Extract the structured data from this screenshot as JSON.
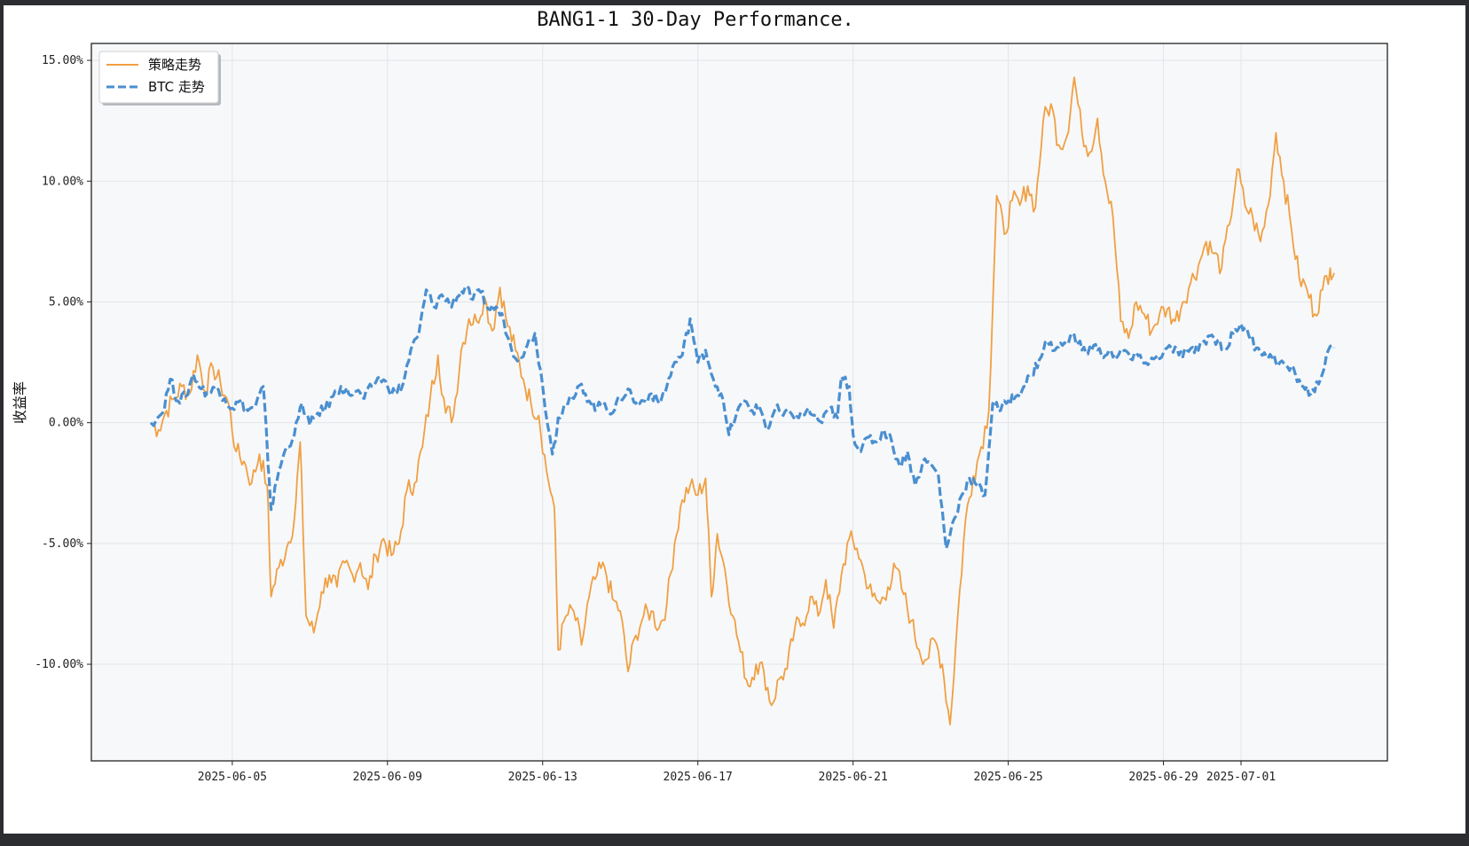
{
  "chart_data": {
    "type": "line",
    "title": "BANG1-1 30-Day Performance.",
    "xlabel": "",
    "ylabel": "收益率",
    "x_range": [
      "2025-06-03",
      "2025-07-03"
    ],
    "ylim": [
      -14,
      15.7
    ],
    "y_ticks": [
      15,
      10,
      5,
      0,
      -5,
      -10
    ],
    "y_tick_labels": [
      "15.00%",
      "10.00%",
      "5.00%",
      "0.00%",
      "-5.00%",
      "-10.00%"
    ],
    "x_ticks": [
      "2025-06-05",
      "2025-06-09",
      "2025-06-13",
      "2025-06-17",
      "2025-06-21",
      "2025-06-25",
      "2025-06-29",
      "2025-07-01"
    ],
    "x_tick_positions": [
      2.1,
      6.1,
      10.1,
      14.1,
      18.1,
      22.1,
      26.1,
      28.1
    ],
    "grid": true,
    "legend_position": "top-left",
    "series": [
      {
        "name": "策略走势",
        "color": "#f0a042",
        "style": "solid",
        "points": [
          [
            0.0,
            0.0
          ],
          [
            0.2,
            -0.3
          ],
          [
            0.4,
            0.5
          ],
          [
            0.6,
            1.0
          ],
          [
            0.8,
            1.5
          ],
          [
            1.0,
            1.2
          ],
          [
            1.2,
            2.8
          ],
          [
            1.4,
            1.3
          ],
          [
            1.6,
            2.3
          ],
          [
            1.8,
            1.6
          ],
          [
            2.0,
            0.8
          ],
          [
            2.2,
            -1.2
          ],
          [
            2.4,
            -1.6
          ],
          [
            2.6,
            -2.5
          ],
          [
            2.8,
            -1.3
          ],
          [
            3.0,
            -2.6
          ],
          [
            3.1,
            -7.2
          ],
          [
            3.3,
            -6.0
          ],
          [
            3.5,
            -5.2
          ],
          [
            3.7,
            -4.0
          ],
          [
            3.85,
            -0.8
          ],
          [
            4.0,
            -8.0
          ],
          [
            4.2,
            -8.7
          ],
          [
            4.4,
            -7.0
          ],
          [
            4.6,
            -6.3
          ],
          [
            4.8,
            -6.8
          ],
          [
            5.0,
            -5.8
          ],
          [
            5.2,
            -6.3
          ],
          [
            5.4,
            -5.8
          ],
          [
            5.6,
            -6.9
          ],
          [
            5.8,
            -5.5
          ],
          [
            6.0,
            -4.8
          ],
          [
            6.2,
            -5.5
          ],
          [
            6.4,
            -5.0
          ],
          [
            6.6,
            -2.8
          ],
          [
            6.8,
            -2.5
          ],
          [
            7.0,
            -1.0
          ],
          [
            7.2,
            1.0
          ],
          [
            7.4,
            2.8
          ],
          [
            7.6,
            0.4
          ],
          [
            7.8,
            0.3
          ],
          [
            8.0,
            3.0
          ],
          [
            8.2,
            4.3
          ],
          [
            8.4,
            4.2
          ],
          [
            8.6,
            5.2
          ],
          [
            8.8,
            3.8
          ],
          [
            9.0,
            5.6
          ],
          [
            9.2,
            4.0
          ],
          [
            9.4,
            3.0
          ],
          [
            9.6,
            1.8
          ],
          [
            9.8,
            0.8
          ],
          [
            10.0,
            0.3
          ],
          [
            10.2,
            -2.0
          ],
          [
            10.4,
            -3.5
          ],
          [
            10.5,
            -9.4
          ],
          [
            10.7,
            -8.0
          ],
          [
            10.9,
            -7.8
          ],
          [
            11.1,
            -9.2
          ],
          [
            11.3,
            -7.2
          ],
          [
            11.5,
            -6.3
          ],
          [
            11.7,
            -6.0
          ],
          [
            11.9,
            -7.3
          ],
          [
            12.1,
            -7.8
          ],
          [
            12.3,
            -10.3
          ],
          [
            12.5,
            -8.8
          ],
          [
            12.7,
            -8.0
          ],
          [
            12.9,
            -7.8
          ],
          [
            13.1,
            -8.5
          ],
          [
            13.3,
            -7.5
          ],
          [
            13.5,
            -5.0
          ],
          [
            13.7,
            -3.2
          ],
          [
            13.9,
            -2.6
          ],
          [
            14.1,
            -3.0
          ],
          [
            14.3,
            -2.3
          ],
          [
            14.45,
            -7.2
          ],
          [
            14.6,
            -4.6
          ],
          [
            14.8,
            -6.1
          ],
          [
            15.0,
            -8.0
          ],
          [
            15.2,
            -9.5
          ],
          [
            15.4,
            -10.9
          ],
          [
            15.6,
            -10.0
          ],
          [
            15.8,
            -10.3
          ],
          [
            16.0,
            -11.7
          ],
          [
            16.2,
            -10.6
          ],
          [
            16.4,
            -10.2
          ],
          [
            16.6,
            -8.5
          ],
          [
            16.8,
            -8.3
          ],
          [
            17.0,
            -7.2
          ],
          [
            17.2,
            -8.0
          ],
          [
            17.4,
            -6.5
          ],
          [
            17.6,
            -8.5
          ],
          [
            17.8,
            -6.3
          ],
          [
            18.0,
            -4.8
          ],
          [
            18.2,
            -5.2
          ],
          [
            18.4,
            -6.3
          ],
          [
            18.6,
            -7.2
          ],
          [
            18.8,
            -7.5
          ],
          [
            19.0,
            -6.8
          ],
          [
            19.2,
            -6.0
          ],
          [
            19.4,
            -7.1
          ],
          [
            19.6,
            -8.2
          ],
          [
            19.8,
            -9.4
          ],
          [
            20.0,
            -9.8
          ],
          [
            20.2,
            -9.0
          ],
          [
            20.4,
            -10.0
          ],
          [
            20.6,
            -12.5
          ],
          [
            20.8,
            -8.0
          ],
          [
            21.0,
            -4.0
          ],
          [
            21.2,
            -2.2
          ],
          [
            21.4,
            -1.0
          ],
          [
            21.6,
            0.5
          ],
          [
            21.8,
            9.4
          ],
          [
            22.0,
            7.8
          ],
          [
            22.2,
            9.2
          ],
          [
            22.4,
            9.0
          ],
          [
            22.6,
            9.8
          ],
          [
            22.8,
            8.9
          ],
          [
            23.0,
            12.5
          ],
          [
            23.2,
            13.2
          ],
          [
            23.4,
            11.5
          ],
          [
            23.6,
            11.8
          ],
          [
            23.8,
            14.3
          ],
          [
            24.0,
            12.0
          ],
          [
            24.2,
            11.2
          ],
          [
            24.4,
            12.6
          ],
          [
            24.6,
            10.0
          ],
          [
            24.8,
            8.5
          ],
          [
            25.0,
            4.2
          ],
          [
            25.2,
            3.5
          ],
          [
            25.4,
            5.0
          ],
          [
            25.6,
            4.5
          ],
          [
            25.8,
            3.8
          ],
          [
            26.0,
            4.5
          ],
          [
            26.2,
            4.7
          ],
          [
            26.4,
            4.2
          ],
          [
            26.6,
            5.0
          ],
          [
            26.8,
            5.8
          ],
          [
            27.0,
            6.5
          ],
          [
            27.2,
            7.5
          ],
          [
            27.4,
            7.0
          ],
          [
            27.6,
            6.4
          ],
          [
            27.8,
            8.2
          ],
          [
            28.0,
            10.5
          ],
          [
            28.2,
            9.0
          ],
          [
            28.4,
            8.5
          ],
          [
            28.6,
            7.5
          ],
          [
            28.8,
            9.0
          ],
          [
            29.0,
            12.0
          ],
          [
            29.2,
            10.0
          ],
          [
            29.4,
            8.0
          ],
          [
            29.6,
            6.0
          ],
          [
            29.8,
            5.5
          ],
          [
            30.0,
            4.5
          ],
          [
            30.2,
            5.5
          ],
          [
            30.4,
            6.4
          ],
          [
            30.5,
            6.2
          ]
        ]
      },
      {
        "name": "BTC 走势",
        "color": "#4a8fd0",
        "style": "dashed",
        "points": [
          [
            0.0,
            0.0
          ],
          [
            0.3,
            0.4
          ],
          [
            0.5,
            1.8
          ],
          [
            0.7,
            0.9
          ],
          [
            0.9,
            1.1
          ],
          [
            1.1,
            2.0
          ],
          [
            1.3,
            1.4
          ],
          [
            1.5,
            1.2
          ],
          [
            1.7,
            1.5
          ],
          [
            1.9,
            1.0
          ],
          [
            2.1,
            0.6
          ],
          [
            2.3,
            0.9
          ],
          [
            2.5,
            0.5
          ],
          [
            2.7,
            0.7
          ],
          [
            2.9,
            1.5
          ],
          [
            3.0,
            -1.0
          ],
          [
            3.1,
            -3.6
          ],
          [
            3.3,
            -2.0
          ],
          [
            3.5,
            -1.0
          ],
          [
            3.7,
            -0.5
          ],
          [
            3.9,
            0.8
          ],
          [
            4.1,
            -0.1
          ],
          [
            4.3,
            0.4
          ],
          [
            4.5,
            0.6
          ],
          [
            4.7,
            1.1
          ],
          [
            4.9,
            1.5
          ],
          [
            5.1,
            1.2
          ],
          [
            5.3,
            1.3
          ],
          [
            5.5,
            1.0
          ],
          [
            5.7,
            1.5
          ],
          [
            5.9,
            1.9
          ],
          [
            6.1,
            1.5
          ],
          [
            6.3,
            1.2
          ],
          [
            6.5,
            1.6
          ],
          [
            6.7,
            3.0
          ],
          [
            6.9,
            3.6
          ],
          [
            7.1,
            5.5
          ],
          [
            7.3,
            4.8
          ],
          [
            7.5,
            5.3
          ],
          [
            7.7,
            4.9
          ],
          [
            7.9,
            5.2
          ],
          [
            8.1,
            5.6
          ],
          [
            8.3,
            5.1
          ],
          [
            8.5,
            5.4
          ],
          [
            8.7,
            4.7
          ],
          [
            8.9,
            4.8
          ],
          [
            9.1,
            4.2
          ],
          [
            9.3,
            3.0
          ],
          [
            9.5,
            2.7
          ],
          [
            9.7,
            3.2
          ],
          [
            9.9,
            3.7
          ],
          [
            10.1,
            1.5
          ],
          [
            10.35,
            -1.3
          ],
          [
            10.5,
            0.2
          ],
          [
            10.7,
            0.8
          ],
          [
            10.9,
            1.0
          ],
          [
            11.1,
            1.6
          ],
          [
            11.3,
            0.9
          ],
          [
            11.5,
            0.6
          ],
          [
            11.7,
            0.8
          ],
          [
            11.9,
            0.4
          ],
          [
            12.1,
            1.0
          ],
          [
            12.3,
            1.4
          ],
          [
            12.5,
            0.8
          ],
          [
            12.7,
            0.9
          ],
          [
            12.9,
            1.2
          ],
          [
            13.1,
            0.8
          ],
          [
            13.3,
            1.5
          ],
          [
            13.5,
            2.5
          ],
          [
            13.7,
            2.8
          ],
          [
            13.9,
            4.3
          ],
          [
            14.1,
            2.5
          ],
          [
            14.3,
            3.0
          ],
          [
            14.5,
            1.8
          ],
          [
            14.7,
            1.2
          ],
          [
            14.9,
            -0.5
          ],
          [
            15.1,
            0.4
          ],
          [
            15.3,
            0.9
          ],
          [
            15.5,
            0.5
          ],
          [
            15.7,
            0.6
          ],
          [
            15.9,
            -0.3
          ],
          [
            16.1,
            0.6
          ],
          [
            16.3,
            0.3
          ],
          [
            16.5,
            0.4
          ],
          [
            16.7,
            0.2
          ],
          [
            16.9,
            0.5
          ],
          [
            17.1,
            0.3
          ],
          [
            17.3,
            0.0
          ],
          [
            17.5,
            0.6
          ],
          [
            17.7,
            0.2
          ],
          [
            17.8,
            1.9
          ],
          [
            18.0,
            1.5
          ],
          [
            18.1,
            -0.5
          ],
          [
            18.3,
            -1.2
          ],
          [
            18.5,
            -0.6
          ],
          [
            18.7,
            -0.8
          ],
          [
            18.9,
            -0.3
          ],
          [
            19.1,
            -0.8
          ],
          [
            19.3,
            -1.8
          ],
          [
            19.5,
            -1.2
          ],
          [
            19.7,
            -2.6
          ],
          [
            19.9,
            -1.6
          ],
          [
            20.1,
            -1.7
          ],
          [
            20.3,
            -2.2
          ],
          [
            20.5,
            -5.2
          ],
          [
            20.7,
            -4.0
          ],
          [
            20.9,
            -3.0
          ],
          [
            21.1,
            -2.3
          ],
          [
            21.3,
            -2.6
          ],
          [
            21.5,
            -3.0
          ],
          [
            21.7,
            0.8
          ],
          [
            21.9,
            0.5
          ],
          [
            22.1,
            0.9
          ],
          [
            22.3,
            1.1
          ],
          [
            22.5,
            1.5
          ],
          [
            22.7,
            2.0
          ],
          [
            22.9,
            2.6
          ],
          [
            23.1,
            3.4
          ],
          [
            23.3,
            3.0
          ],
          [
            23.5,
            3.2
          ],
          [
            23.7,
            3.6
          ],
          [
            23.9,
            3.3
          ],
          [
            24.1,
            2.9
          ],
          [
            24.3,
            3.2
          ],
          [
            24.5,
            2.8
          ],
          [
            24.7,
            3.0
          ],
          [
            24.9,
            2.7
          ],
          [
            25.1,
            3.0
          ],
          [
            25.3,
            2.6
          ],
          [
            25.5,
            2.8
          ],
          [
            25.7,
            2.4
          ],
          [
            25.9,
            2.7
          ],
          [
            26.1,
            2.9
          ],
          [
            26.3,
            3.1
          ],
          [
            26.5,
            2.8
          ],
          [
            26.7,
            3.0
          ],
          [
            26.9,
            2.9
          ],
          [
            27.1,
            3.3
          ],
          [
            27.3,
            3.6
          ],
          [
            27.5,
            3.4
          ],
          [
            27.7,
            3.0
          ],
          [
            27.9,
            3.7
          ],
          [
            28.1,
            4.1
          ],
          [
            28.3,
            3.6
          ],
          [
            28.5,
            3.1
          ],
          [
            28.7,
            2.9
          ],
          [
            28.9,
            2.7
          ],
          [
            29.1,
            2.5
          ],
          [
            29.3,
            2.3
          ],
          [
            29.5,
            2.0
          ],
          [
            29.7,
            1.5
          ],
          [
            29.9,
            1.2
          ],
          [
            30.1,
            1.6
          ],
          [
            30.3,
            2.8
          ],
          [
            30.5,
            3.1
          ]
        ]
      }
    ]
  }
}
